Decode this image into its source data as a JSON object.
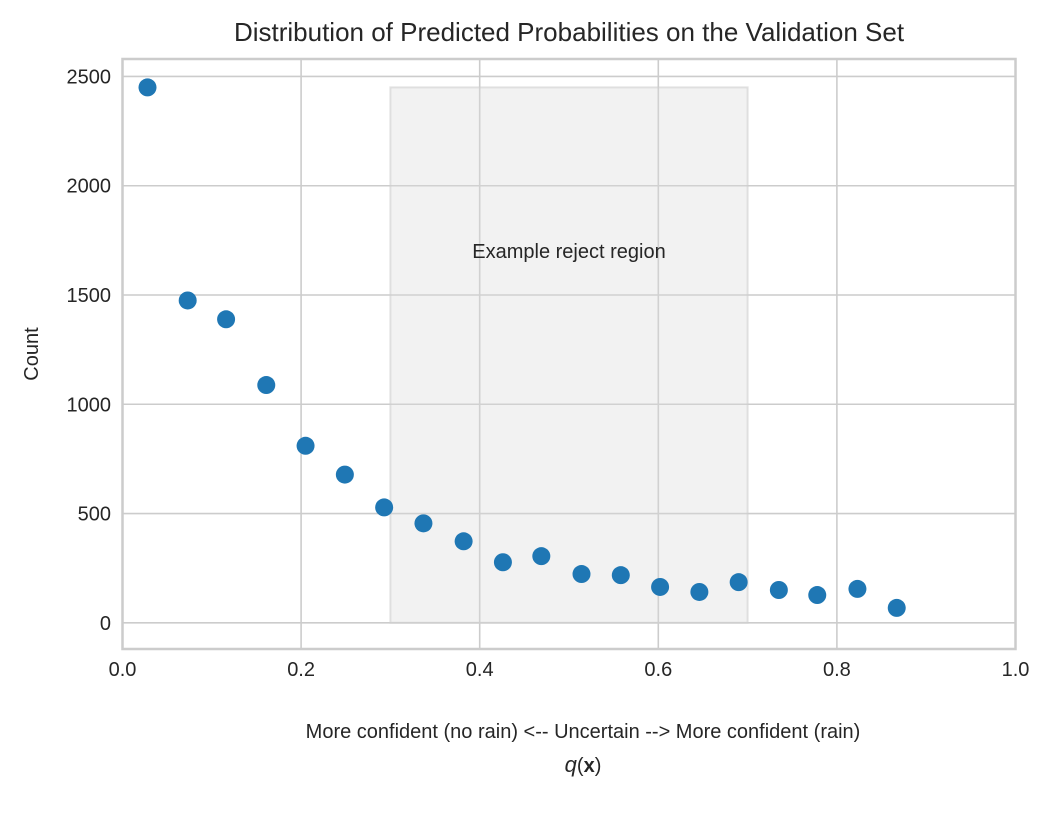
{
  "chart_data": {
    "type": "scatter",
    "title": "Distribution of Predicted Probabilities on the Validation Set",
    "xlabel": "More confident (no rain) <-- Uncertain --> More confident (rain)",
    "xlabel_math": {
      "italic": "q",
      "open": "(",
      "bold": "x",
      "close": ")"
    },
    "ylabel": "Count",
    "xlim": [
      0.0,
      1.0
    ],
    "ylim": [
      -120,
      2580
    ],
    "xticks": [
      0.0,
      0.2,
      0.4,
      0.6,
      0.8,
      1.0
    ],
    "xtick_labels": [
      "0.0",
      "0.2",
      "0.4",
      "0.6",
      "0.8",
      "1.0"
    ],
    "yticks": [
      0,
      500,
      1000,
      1500,
      2000,
      2500
    ],
    "ytick_labels": [
      "0",
      "500",
      "1000",
      "1500",
      "2000",
      "2500"
    ],
    "grid": true,
    "marker_color": "#1f77b4",
    "series": [
      {
        "name": "Count",
        "x": [
          0.028,
          0.073,
          0.116,
          0.161,
          0.205,
          0.249,
          0.293,
          0.337,
          0.382,
          0.426,
          0.469,
          0.514,
          0.558,
          0.602,
          0.646,
          0.69,
          0.735,
          0.778,
          0.823,
          0.867
        ],
        "y": [
          2450,
          1475,
          1389,
          1088,
          810,
          678,
          528,
          455,
          373,
          277,
          305,
          223,
          218,
          164,
          141,
          186,
          150,
          127,
          155,
          68
        ]
      }
    ],
    "reject_region": {
      "x_start": 0.3,
      "x_end": 0.7,
      "y_start": 0,
      "y_end": 2450,
      "color": "#d9d9d9",
      "label": "Example reject region",
      "label_x": 0.5,
      "label_y": 1670
    }
  }
}
